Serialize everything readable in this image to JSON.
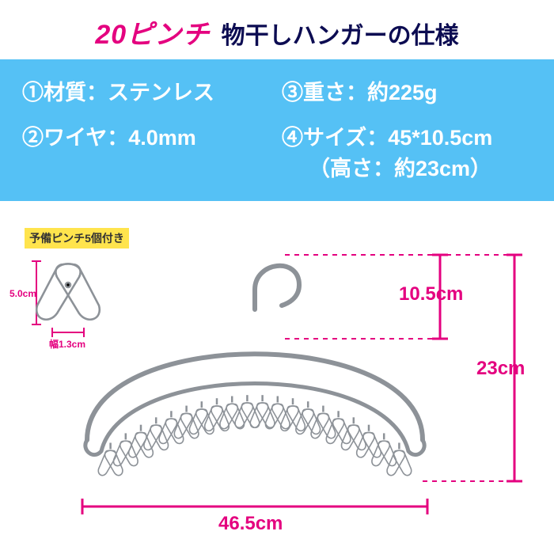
{
  "colors": {
    "pink": "#e4007f",
    "darknavy": "#0c0c52",
    "skyblue": "#55c1f5",
    "yellow": "#ffe44d",
    "steel": "#bfc4c9",
    "steel_dark": "#8d9298"
  },
  "title": {
    "pinch": "20ピンチ",
    "spec": "物干しハンガーの仕様"
  },
  "specs": {
    "s1": "①材質：ステンレス",
    "s2": "②ワイヤ：4.0mm",
    "s3": "③重さ：約225g",
    "s4a": "④サイズ：45*10.5cm",
    "s4b": "（高さ：約23cm）"
  },
  "spare": {
    "label": "予備ピンチ5個付き",
    "len": "5.0cm",
    "width": "幅1.3cm"
  },
  "dims": {
    "hook_h": "10.5cm",
    "total_h": "23cm",
    "width": "46.5cm"
  }
}
